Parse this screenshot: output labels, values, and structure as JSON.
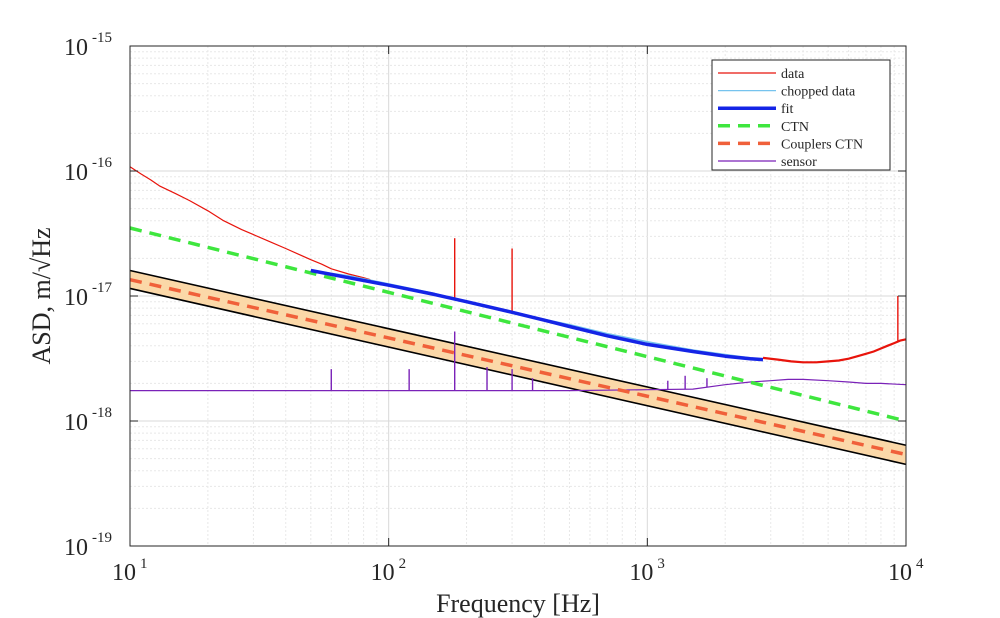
{
  "chart_data": {
    "type": "line",
    "xscale": "log",
    "yscale": "log",
    "xlabel": "Frequency [Hz]",
    "ylabel": "ASD, m/√Hz",
    "xlim": [
      10,
      10000
    ],
    "ylim": [
      1e-19,
      1e-15
    ],
    "grid": true,
    "legend_position": "top-right",
    "x_ticks": [
      {
        "value": 10,
        "base": "10",
        "exp": "1"
      },
      {
        "value": 100,
        "base": "10",
        "exp": "2"
      },
      {
        "value": 1000,
        "base": "10",
        "exp": "3"
      },
      {
        "value": 10000,
        "base": "10",
        "exp": "4"
      }
    ],
    "y_ticks": [
      {
        "value": 1e-19,
        "base": "10",
        "exp": "-19"
      },
      {
        "value": 1e-18,
        "base": "10",
        "exp": "-18"
      },
      {
        "value": 1e-17,
        "base": "10",
        "exp": "-17"
      },
      {
        "value": 1e-16,
        "base": "10",
        "exp": "-16"
      },
      {
        "value": 1e-15,
        "base": "10",
        "exp": "-15"
      }
    ],
    "series": [
      {
        "name": "data",
        "color": "#e8140c",
        "x": [
          10,
          11,
          12,
          13,
          15,
          17,
          20,
          23,
          27,
          30,
          35,
          40,
          45,
          50,
          55,
          60,
          70,
          80,
          85
        ],
        "y": [
          1.08e-16,
          9.5e-17,
          8.5e-17,
          7.6e-17,
          6.6e-17,
          5.8e-17,
          4.8e-17,
          4e-17,
          3.4e-17,
          3.1e-17,
          2.7e-17,
          2.4e-17,
          2.15e-17,
          1.95e-17,
          1.8e-17,
          1.65e-17,
          1.5e-17,
          1.4e-17,
          1.35e-17
        ],
        "spikes": [
          {
            "x": 180,
            "y": 2.9e-17
          },
          {
            "x": 300,
            "y": 2.4e-17
          },
          {
            "x": 9300,
            "y": 1e-17
          }
        ],
        "x2": [
          2800,
          3200,
          3600,
          4000,
          4500,
          5000,
          5500,
          6000,
          6500,
          7000,
          7500,
          8000,
          8500,
          9000,
          9500,
          10000
        ],
        "y2": [
          3.2e-18,
          3.1e-18,
          3e-18,
          2.95e-18,
          2.95e-18,
          3e-18,
          3.05e-18,
          3.15e-18,
          3.3e-18,
          3.45e-18,
          3.6e-18,
          3.8e-18,
          4e-18,
          4.2e-18,
          4.4e-18,
          4.5e-18
        ]
      },
      {
        "name": "chopped data",
        "color": "#76c3ee",
        "x": [
          50,
          70,
          100,
          150,
          200,
          300,
          400,
          500,
          700,
          1000,
          1500,
          2000,
          2500,
          2800
        ],
        "y": [
          1.6e-17,
          1.45e-17,
          1.25e-17,
          1.05e-17,
          9e-18,
          7.5e-18,
          6.5e-18,
          5.9e-18,
          5e-18,
          4.3e-18,
          3.7e-18,
          3.4e-18,
          3.2e-18,
          3.1e-18
        ]
      },
      {
        "name": "fit",
        "color": "#1424e6",
        "x": [
          50,
          70,
          100,
          150,
          200,
          300,
          400,
          500,
          700,
          1000,
          1500,
          2000,
          2500,
          2800
        ],
        "y": [
          1.6e-17,
          1.4e-17,
          1.22e-17,
          1.03e-17,
          9e-18,
          7.4e-18,
          6.4e-18,
          5.7e-18,
          4.8e-18,
          4.1e-18,
          3.6e-18,
          3.3e-18,
          3.15e-18,
          3.1e-18
        ]
      },
      {
        "name": "CTN",
        "color": "#3ee63e",
        "x": [
          10,
          10000
        ],
        "y": [
          3.5e-17,
          1e-18
        ]
      },
      {
        "name": "Couplers CTN",
        "color": "#f0603a",
        "x": [
          10,
          10000
        ],
        "y": [
          1.35e-17,
          5.4e-19
        ]
      },
      {
        "name": "sensor",
        "color": "#7a22b8",
        "x": [
          10,
          20,
          50,
          100,
          200,
          500,
          1000,
          1500,
          2000,
          2500,
          3000,
          3500,
          4000,
          5000,
          6000,
          7000,
          8000,
          10000
        ],
        "y": [
          1.75e-18,
          1.75e-18,
          1.75e-18,
          1.75e-18,
          1.75e-18,
          1.75e-18,
          1.78e-18,
          1.8e-18,
          1.95e-18,
          2.05e-18,
          2.1e-18,
          2.15e-18,
          2.15e-18,
          2.1e-18,
          2.05e-18,
          2e-18,
          2e-18,
          1.95e-18
        ],
        "spikes": [
          {
            "x": 60,
            "y": 2.6e-18
          },
          {
            "x": 120,
            "y": 2.6e-18
          },
          {
            "x": 180,
            "y": 5.2e-18
          },
          {
            "x": 240,
            "y": 2.7e-18
          },
          {
            "x": 300,
            "y": 2.6e-18
          },
          {
            "x": 360,
            "y": 2.2e-18
          },
          {
            "x": 1200,
            "y": 2.1e-18
          },
          {
            "x": 1400,
            "y": 2.3e-18
          },
          {
            "x": 1700,
            "y": 2.2e-18
          }
        ]
      }
    ],
    "band": {
      "name": "Couplers CTN band",
      "x": [
        10,
        10000
      ],
      "upper": [
        1.6e-17,
        6.4e-19
      ],
      "lower": [
        1.15e-17,
        4.5e-19
      ],
      "fill": "#fbd8a8",
      "edge": "#000000"
    },
    "legend": [
      {
        "label": "data",
        "color": "#e8140c",
        "style": "thin"
      },
      {
        "label": "chopped data",
        "color": "#76c3ee",
        "style": "thin"
      },
      {
        "label": "fit",
        "color": "#1424e6",
        "style": "thick"
      },
      {
        "label": "CTN",
        "color": "#3ee63e",
        "style": "dashed"
      },
      {
        "label": "Couplers CTN",
        "color": "#f0603a",
        "style": "dashed"
      },
      {
        "label": "sensor",
        "color": "#7a22b8",
        "style": "thin"
      }
    ]
  }
}
